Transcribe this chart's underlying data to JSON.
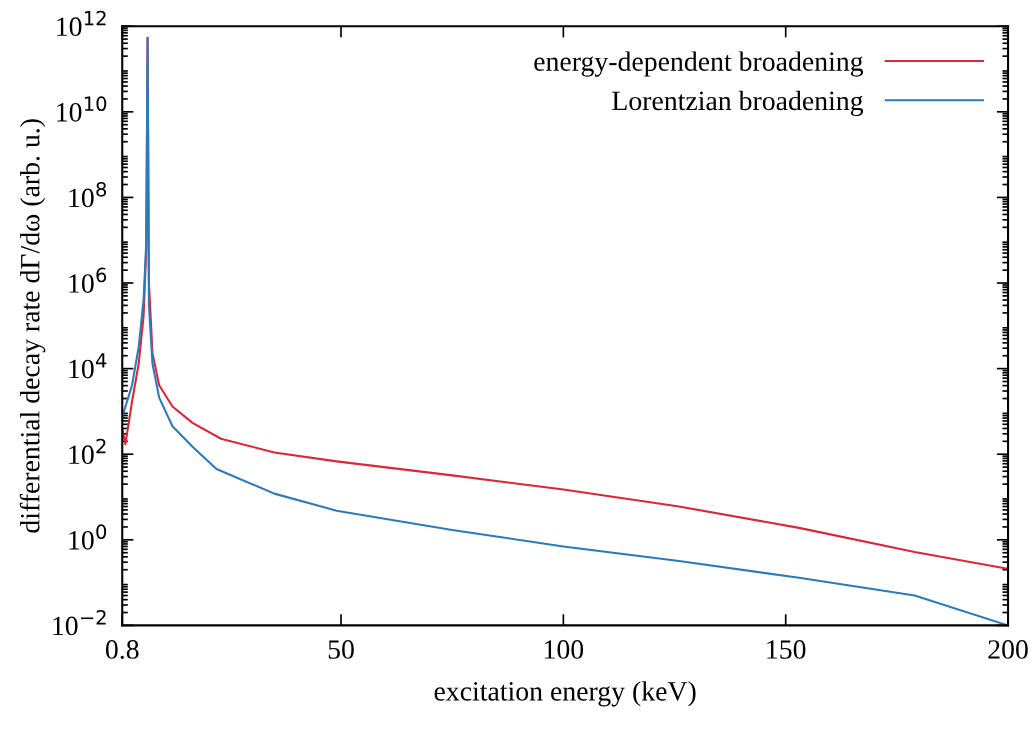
{
  "chart_data": {
    "type": "line",
    "xlabel": "excitation energy (keV)",
    "ylabel": "differential decay rate dΓ/dω (arb. u.)",
    "log": "y",
    "legend": "top right",
    "grid": false,
    "xlim": [
      0.8,
      200
    ],
    "xticks": [
      0.8,
      50,
      100,
      150,
      200
    ],
    "ylim": [
      0.01,
      1000000000000.0
    ],
    "yticks": [
      {
        "value": 0.01,
        "label": "10$^{−2}$"
      },
      {
        "value": 1,
        "label": "10$^{0}$"
      },
      {
        "value": 100,
        "label": "10$^{2}$"
      },
      {
        "value": 10000,
        "label": "10$^{4}$"
      },
      {
        "value": 1000000,
        "label": "10$^{6}$"
      },
      {
        "value": 100000000,
        "label": "10$^{8}$"
      },
      {
        "value": 10000000000,
        "label": "10$^{10}$"
      },
      {
        "value": 1000000000000,
        "label": "10$^{12}$"
      }
    ],
    "series": [
      {
        "name": "energy-dependent broadening",
        "color": "#d62839",
        "x": [
          0.8,
          1.5,
          3.0,
          4.5,
          5.6,
          6.2,
          6.5,
          6.8,
          7.6,
          9.1,
          12.1,
          16.6,
          23,
          35,
          49,
          75,
          100,
          126,
          153,
          179,
          200
        ],
        "values": [
          400,
          170,
          1700,
          13000,
          170000,
          6300000,
          540000000000,
          1000000,
          23000,
          4100,
          1300,
          540,
          230,
          110,
          68,
          32,
          15,
          6.0,
          1.9,
          0.52,
          0.21
        ]
      },
      {
        "name": "Lorentzian broadening",
        "color": "#2b7bba",
        "x": [
          0.8,
          3.0,
          4.5,
          5.6,
          6.2,
          6.5,
          6.8,
          7.6,
          9.1,
          12.1,
          16.6,
          22,
          35,
          49,
          75,
          100,
          126,
          153,
          179,
          200
        ],
        "values": [
          740,
          4100,
          32000,
          410000,
          8900000,
          540000000000,
          300000,
          13000,
          2100,
          450,
          150,
          45,
          12,
          4.8,
          1.7,
          0.7,
          0.32,
          0.13,
          0.05,
          0.01
        ]
      }
    ]
  }
}
